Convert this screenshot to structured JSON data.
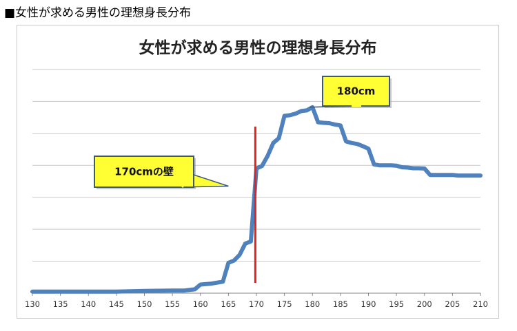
{
  "page": {
    "heading": "■女性が求める男性の理想身長分布"
  },
  "chart_data": {
    "type": "line",
    "title": "女性が求める男性の理想身長分布",
    "xlabel": "",
    "ylabel": "",
    "xlim": [
      130,
      210
    ],
    "ylim": [
      0,
      7
    ],
    "grid": true,
    "x_ticks": [
      130,
      135,
      140,
      145,
      150,
      155,
      160,
      165,
      170,
      175,
      180,
      185,
      190,
      195,
      200,
      205,
      210
    ],
    "series": [
      {
        "color": "#4f81bd",
        "x": [
          130,
          135,
          140,
          145,
          150,
          155,
          157,
          158,
          159,
          160,
          162,
          163,
          164,
          165,
          166,
          167,
          168,
          169,
          170,
          171,
          172,
          173,
          174,
          175,
          176,
          177,
          178,
          179,
          180,
          181,
          182,
          183,
          184,
          185,
          186,
          187,
          188,
          189,
          190,
          191,
          192,
          193,
          194,
          195,
          196,
          197,
          198,
          199,
          200,
          201,
          202,
          203,
          204,
          205,
          206,
          207,
          208,
          209,
          210
        ],
        "y": [
          0.05,
          0.05,
          0.05,
          0.05,
          0.07,
          0.08,
          0.08,
          0.1,
          0.12,
          0.27,
          0.3,
          0.33,
          0.36,
          0.95,
          1.02,
          1.2,
          1.55,
          1.62,
          3.9,
          3.98,
          4.3,
          4.7,
          4.85,
          5.55,
          5.57,
          5.62,
          5.7,
          5.72,
          5.82,
          5.35,
          5.33,
          5.32,
          5.28,
          5.25,
          4.75,
          4.7,
          4.67,
          4.6,
          4.52,
          4.03,
          4.0,
          4.0,
          4.0,
          3.99,
          3.94,
          3.93,
          3.91,
          3.91,
          3.9,
          3.7,
          3.7,
          3.7,
          3.7,
          3.7,
          3.68,
          3.68,
          3.68,
          3.68,
          3.68
        ]
      }
    ],
    "reference_line": {
      "x": 169.8,
      "color": "#e8201a"
    },
    "annotations": [
      {
        "text": "180cm",
        "x": 179.5,
        "y": 5.82
      },
      {
        "text": "170cmの壁",
        "x": 165,
        "y": 3.35
      }
    ]
  }
}
